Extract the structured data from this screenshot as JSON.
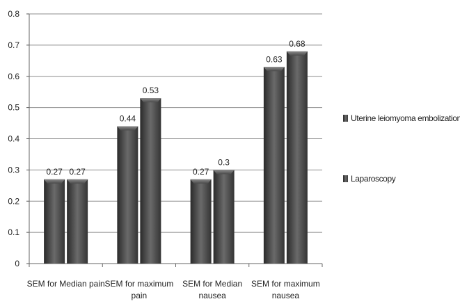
{
  "chart_data": {
    "type": "bar",
    "categories": [
      [
        "SEM for Median pain"
      ],
      [
        "SEM for maximum",
        "pain"
      ],
      [
        "SEM for Median",
        "nausea"
      ],
      [
        "SEM for maximum",
        "nausea"
      ]
    ],
    "series": [
      {
        "name": "Uterine leiomyoma embolization",
        "values": [
          0.27,
          0.44,
          0.27,
          0.63
        ],
        "labels": [
          "0.27",
          "0.44",
          "0.27",
          "0.63"
        ]
      },
      {
        "name": "Laparoscopy",
        "values": [
          0.27,
          0.53,
          0.3,
          0.68
        ],
        "labels": [
          "0.27",
          "0.53",
          "0.3",
          "0.68"
        ]
      }
    ],
    "ylim": [
      0,
      0.8
    ],
    "yticks": [
      "0",
      "0.1",
      "0.2",
      "0.3",
      "0.4",
      "0.5",
      "0.6",
      "0.7",
      "0.8"
    ],
    "grid": true,
    "legend_position": "right",
    "colors": {
      "bar_dark": "#2a2a2a",
      "bar_mid": "#6a6a6a",
      "grid": "#8c8c8c"
    }
  }
}
